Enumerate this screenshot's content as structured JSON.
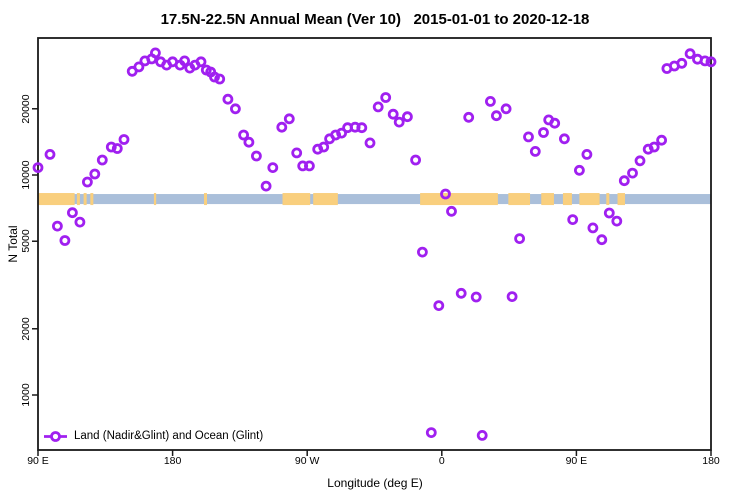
{
  "title": "17.5N-22.5N Annual Mean (Ver 10)   2015-01-01 to 2020-12-18",
  "legend": {
    "label": "Land (Nadir&Glint) and Ocean (Glint)"
  },
  "axes": {
    "x": {
      "label": "Longitude (deg E)",
      "ticks": [
        {
          "value": 90,
          "label": "90 E"
        },
        {
          "value": 180,
          "label": "180"
        },
        {
          "value": 270,
          "label": "90 W"
        },
        {
          "value": 360,
          "label": "0"
        },
        {
          "value": 450,
          "label": "90 E"
        },
        {
          "value": 540,
          "label": "180"
        }
      ]
    },
    "y": {
      "label": "N Total",
      "scale": "log",
      "ticks": [
        {
          "value": 1000,
          "label": "1000"
        },
        {
          "value": 2000,
          "label": "2000"
        },
        {
          "value": 5000,
          "label": "5000"
        },
        {
          "value": 10000,
          "label": "10000"
        },
        {
          "value": 20000,
          "label": "20000"
        }
      ]
    }
  },
  "colors": {
    "marker": "#A020F0",
    "ocean": "#AABFDA",
    "land": "#F9CF7E",
    "axis": "#1a1a1a"
  },
  "chart_data": {
    "type": "scatter",
    "title": "17.5N-22.5N Annual Mean (Ver 10)   2015-01-01 to 2020-12-18",
    "xlabel": "Longitude (deg E)",
    "ylabel": "N Total",
    "x_axis_unit": "degrees east, axis spans 90E eastward through 180, 90W, 0, 90E to 180 (90 to 540)",
    "x_range_deg": [
      90,
      540
    ],
    "y_scale": "log",
    "y_range": [
      560,
      42000
    ],
    "grid": false,
    "legend_position": "bottom-left",
    "map_band": {
      "description": "horizontal world-map strip (17.5N-22.5N latitude band) drawn across plot",
      "ocean_color": "#AABFDA",
      "land_color": "#F9CF7E",
      "n_top": 8280,
      "n_bottom": 7300,
      "ocean_range_deg": [
        90,
        540
      ],
      "land_patches_deg": [
        [
          90,
          114.5
        ],
        [
          116,
          118
        ],
        [
          120.5,
          122.5
        ],
        [
          125,
          127
        ],
        [
          167.5,
          169
        ],
        [
          201,
          203
        ],
        [
          253.5,
          272
        ],
        [
          274,
          290.5
        ],
        [
          345.5,
          397.5
        ],
        [
          404.5,
          419
        ],
        [
          426.5,
          435
        ],
        [
          441,
          447
        ],
        [
          452,
          465.5
        ],
        [
          470,
          472
        ],
        [
          477.5,
          482.5
        ]
      ]
    },
    "series": [
      {
        "name": "Land (Nadir&Glint) and Ocean (Glint)",
        "marker": "open-circle",
        "color": "#A020F0",
        "points": [
          [
            90,
            10800
          ],
          [
            98,
            12400
          ],
          [
            103,
            5860
          ],
          [
            108,
            5040
          ],
          [
            113,
            6740
          ],
          [
            118,
            6110
          ],
          [
            123,
            9290
          ],
          [
            128,
            10100
          ],
          [
            133,
            11700
          ],
          [
            139,
            13400
          ],
          [
            143,
            13200
          ],
          [
            147.5,
            14500
          ],
          [
            153,
            29600
          ],
          [
            157.5,
            31000
          ],
          [
            161.5,
            33000
          ],
          [
            166,
            33700
          ],
          [
            168.5,
            35900
          ],
          [
            172,
            32700
          ],
          [
            176,
            31600
          ],
          [
            180,
            32700
          ],
          [
            185,
            31600
          ],
          [
            188,
            33000
          ],
          [
            191.5,
            30600
          ],
          [
            195,
            31600
          ],
          [
            199,
            32700
          ],
          [
            202.5,
            30000
          ],
          [
            205.5,
            29400
          ],
          [
            208,
            27900
          ],
          [
            211.5,
            27300
          ],
          [
            217,
            22100
          ],
          [
            222,
            20000
          ],
          [
            227.5,
            15200
          ],
          [
            231,
            14100
          ],
          [
            236,
            12200
          ],
          [
            242.5,
            8900
          ],
          [
            247,
            10800
          ],
          [
            253,
            16500
          ],
          [
            258,
            18000
          ],
          [
            263,
            12600
          ],
          [
            267,
            11000
          ],
          [
            271.5,
            11000
          ],
          [
            277,
            13100
          ],
          [
            281,
            13400
          ],
          [
            285,
            14600
          ],
          [
            289,
            15200
          ],
          [
            293,
            15500
          ],
          [
            297,
            16400
          ],
          [
            302,
            16500
          ],
          [
            306.5,
            16400
          ],
          [
            312,
            14000
          ],
          [
            317.5,
            20400
          ],
          [
            322.5,
            22500
          ],
          [
            327.5,
            18900
          ],
          [
            331.5,
            17400
          ],
          [
            337,
            18400
          ],
          [
            342.5,
            11700
          ],
          [
            347,
            4460
          ],
          [
            353,
            675
          ],
          [
            358,
            2550
          ],
          [
            362.5,
            8200
          ],
          [
            366.5,
            6840
          ],
          [
            373,
            2900
          ],
          [
            378,
            18300
          ],
          [
            383,
            2790
          ],
          [
            387,
            655
          ],
          [
            392.5,
            21600
          ],
          [
            396.5,
            18600
          ],
          [
            403,
            20000
          ],
          [
            407,
            2800
          ],
          [
            412,
            5140
          ],
          [
            418,
            14900
          ],
          [
            422.5,
            12800
          ],
          [
            428,
            15600
          ],
          [
            431.5,
            17800
          ],
          [
            435.5,
            17200
          ],
          [
            442,
            14600
          ],
          [
            447.5,
            6270
          ],
          [
            452,
            10500
          ],
          [
            457,
            12400
          ],
          [
            461,
            5750
          ],
          [
            467,
            5080
          ],
          [
            472,
            6720
          ],
          [
            477,
            6170
          ],
          [
            482,
            9420
          ],
          [
            487.5,
            10200
          ],
          [
            492.5,
            11600
          ],
          [
            498,
            13100
          ],
          [
            502,
            13400
          ],
          [
            507,
            14400
          ],
          [
            510.5,
            30500
          ],
          [
            515.5,
            31300
          ],
          [
            520.5,
            32200
          ],
          [
            526,
            35600
          ],
          [
            531,
            33600
          ],
          [
            536,
            33000
          ],
          [
            540,
            32700
          ]
        ]
      }
    ]
  }
}
